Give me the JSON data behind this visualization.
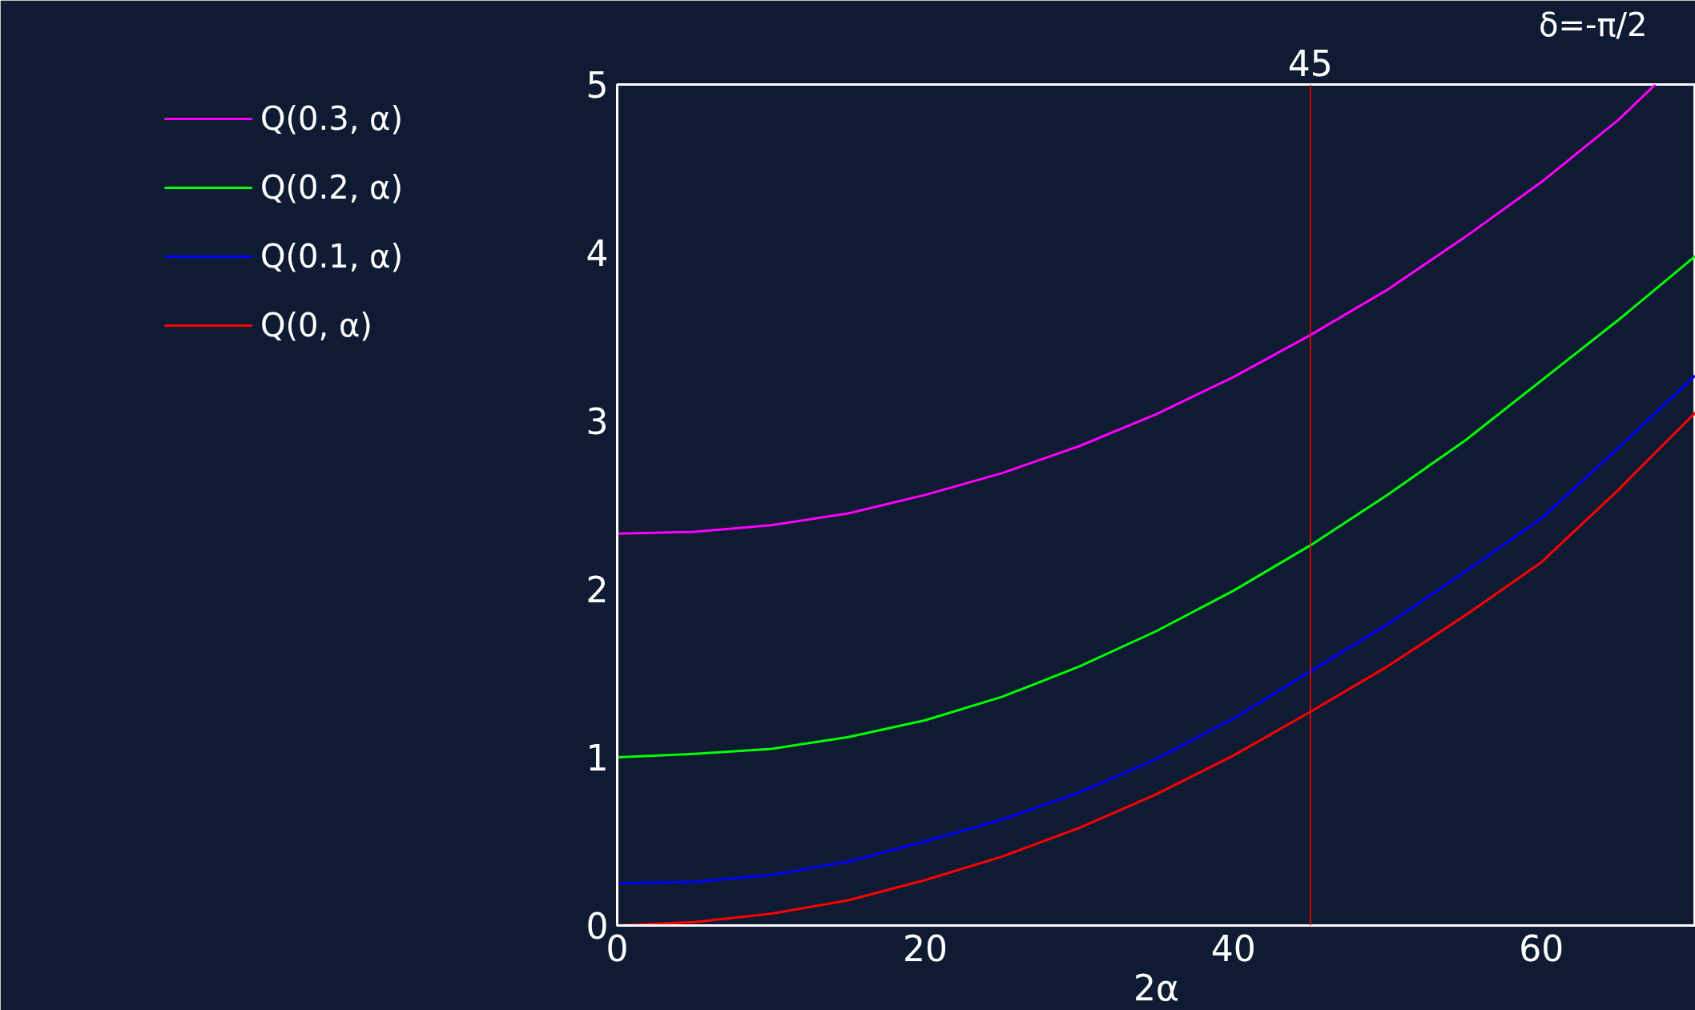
{
  "chart_data": {
    "type": "line",
    "xlabel": "2α",
    "annotations": [
      "δ=-π/2"
    ],
    "x": [
      0,
      5,
      10,
      15,
      20,
      25,
      30,
      35,
      40,
      45,
      50,
      55,
      60,
      65,
      70
    ],
    "series": [
      {
        "name": "Q(0.3, α)",
        "color": "#ff00ff",
        "x": [
          0,
          5,
          10,
          15,
          20,
          25,
          30,
          35,
          40,
          45,
          50,
          55,
          60,
          65,
          67.4
        ],
        "values": [
          2.33,
          2.34,
          2.38,
          2.45,
          2.56,
          2.69,
          2.85,
          3.04,
          3.26,
          3.51,
          3.78,
          4.09,
          4.42,
          4.79,
          5.0
        ]
      },
      {
        "name": "Q(0.2, α)",
        "color": "#00ff00",
        "values": [
          1.0,
          1.02,
          1.05,
          1.12,
          1.22,
          1.36,
          1.54,
          1.75,
          1.99,
          2.26,
          2.56,
          2.88,
          3.24,
          3.6,
          3.98
        ]
      },
      {
        "name": "Q(0.1, α)",
        "color": "#0000ff",
        "values": [
          0.25,
          0.26,
          0.3,
          0.38,
          0.5,
          0.63,
          0.79,
          0.99,
          1.23,
          1.51,
          1.79,
          2.1,
          2.42,
          2.84,
          3.27
        ]
      },
      {
        "name": "Q(0, α)",
        "color": "#ff0000",
        "values": [
          0,
          0.02,
          0.07,
          0.15,
          0.27,
          0.41,
          0.58,
          0.78,
          1.01,
          1.27,
          1.54,
          1.84,
          2.16,
          2.59,
          3.05
        ]
      }
    ],
    "xlim": [
      0,
      70
    ],
    "ylim": [
      0,
      5
    ],
    "xticks": [
      0,
      20,
      40,
      60
    ],
    "yticks": [
      0,
      1,
      2,
      3,
      4,
      5
    ],
    "ref_lines": [
      {
        "axis": "x",
        "value": 45,
        "label": "45",
        "color": "#ff0000"
      }
    ],
    "legend": "left",
    "line_style": "solid"
  }
}
